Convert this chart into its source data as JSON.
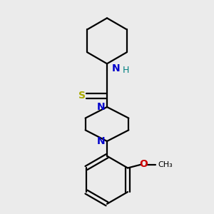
{
  "background_color": "#ebebeb",
  "bond_color": "#000000",
  "N_color": "#0000cc",
  "S_color": "#aaaa00",
  "O_color": "#cc0000",
  "H_color": "#008080",
  "line_width": 1.6,
  "figsize": [
    3.0,
    3.0
  ],
  "dpi": 100,
  "xlim": [
    0.15,
    0.85
  ],
  "ylim": [
    0.05,
    0.98
  ]
}
